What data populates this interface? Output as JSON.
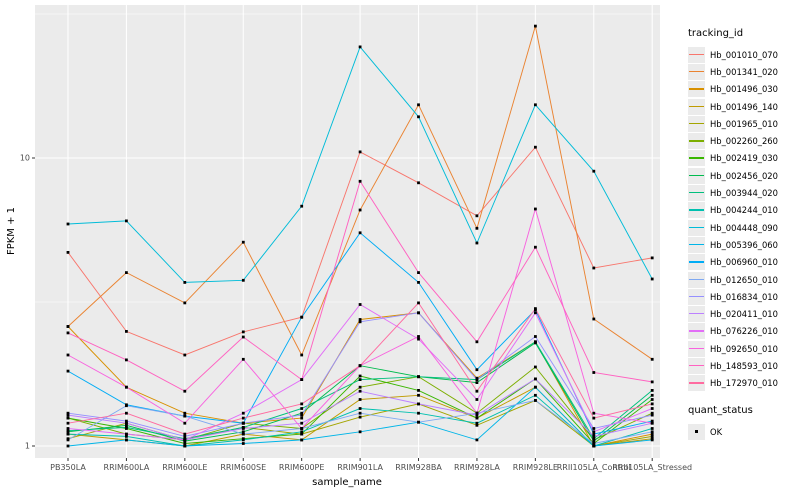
{
  "chart_data": {
    "type": "line",
    "title": "",
    "x_axis": {
      "label": "sample_name"
    },
    "y_axis": {
      "label": "FPKM + 1",
      "scale": "log10",
      "ticks": [
        "10",
        "1"
      ],
      "tick_values": [
        10,
        1
      ],
      "minor_tick_values": [
        3.162,
        31.62
      ],
      "ylim_approx": [
        0.92,
        33
      ]
    },
    "grid": "on",
    "legend_position": "right",
    "panel_bg": "#ebebeb",
    "grid_color": "#ffffff",
    "marker": {
      "shape": "square",
      "color": "#000000"
    },
    "categories": [
      "PB350LA",
      "RRIM600LA",
      "RRIM600LE",
      "RRIM600SE",
      "RRIM600PE",
      "RRIM901LA",
      "RRIM928BA",
      "RRIM928LA",
      "RRIM928LE",
      "RRII105LA_Control",
      "RRII105LA_Stressed"
    ],
    "legend_title": "tracking_id",
    "quant_legend": {
      "title": "quant_status",
      "items": [
        {
          "label": "OK"
        }
      ]
    },
    "series": [
      {
        "name": "Hb_001010_070",
        "color": "#F8766D",
        "values": [
          4.7,
          2.5,
          2.07,
          2.49,
          2.8,
          10.5,
          8.2,
          6.3,
          10.9,
          4.15,
          4.5
        ]
      },
      {
        "name": "Hb_001341_020",
        "color": "#EA8331",
        "values": [
          2.6,
          4.0,
          3.14,
          5.1,
          2.07,
          6.6,
          15.3,
          5.7,
          28.7,
          2.76,
          2.0
        ]
      },
      {
        "name": "Hb_001496_030",
        "color": "#D89000",
        "values": [
          2.6,
          1.6,
          1.3,
          1.2,
          1.25,
          2.75,
          2.9,
          1.72,
          2.3,
          1.0,
          1.1
        ]
      },
      {
        "name": "Hb_001496_140",
        "color": "#C09B00",
        "values": [
          1.1,
          1.05,
          1.0,
          1.1,
          1.05,
          1.45,
          1.5,
          1.25,
          1.6,
          1.0,
          1.06
        ]
      },
      {
        "name": "Hb_001965_010",
        "color": "#A3A500",
        "values": [
          1.06,
          1.2,
          1.05,
          1.16,
          1.1,
          1.26,
          1.4,
          1.18,
          1.44,
          1.0,
          1.08
        ]
      },
      {
        "name": "Hb_002260_260",
        "color": "#7CAE00",
        "values": [
          1.25,
          1.1,
          1.05,
          1.2,
          1.15,
          1.6,
          1.74,
          1.3,
          1.88,
          1.05,
          1.3
        ]
      },
      {
        "name": "Hb_002419_030",
        "color": "#39B600",
        "values": [
          1.25,
          1.15,
          1.02,
          1.06,
          1.1,
          1.75,
          1.56,
          1.25,
          1.71,
          1.02,
          1.45
        ]
      },
      {
        "name": "Hb_002456_020",
        "color": "#00BB4E",
        "values": [
          1.12,
          1.18,
          1.04,
          1.12,
          1.3,
          1.9,
          1.74,
          1.66,
          2.28,
          1.04,
          1.5
        ]
      },
      {
        "name": "Hb_003944_020",
        "color": "#00BF7D",
        "values": [
          1.13,
          1.16,
          1.06,
          1.16,
          1.35,
          1.7,
          1.74,
          1.7,
          2.3,
          1.06,
          1.56
        ]
      },
      {
        "name": "Hb_004244_010",
        "color": "#00C0AF",
        "values": [
          1.1,
          1.08,
          1.0,
          1.05,
          1.12,
          1.35,
          1.3,
          1.2,
          1.5,
          1.0,
          1.15
        ]
      },
      {
        "name": "Hb_004448_090",
        "color": "#00BCD8",
        "values": [
          5.9,
          6.05,
          3.7,
          3.76,
          6.8,
          24.3,
          13.9,
          5.07,
          15.3,
          9.0,
          3.8
        ]
      },
      {
        "name": "Hb_005396_060",
        "color": "#00B5E8",
        "values": [
          1.0,
          1.05,
          1.0,
          1.02,
          1.05,
          1.12,
          1.21,
          1.05,
          1.6,
          1.0,
          1.05
        ]
      },
      {
        "name": "Hb_006960_010",
        "color": "#00ACF5",
        "values": [
          1.82,
          1.39,
          1.27,
          1.2,
          2.8,
          5.5,
          3.7,
          1.84,
          2.97,
          1.1,
          1.22
        ]
      },
      {
        "name": "Hb_012650_010",
        "color": "#7FA9F2",
        "values": [
          1.05,
          1.38,
          1.27,
          1.1,
          1.15,
          1.3,
          1.21,
          1.3,
          1.44,
          1.02,
          1.12
        ]
      },
      {
        "name": "Hb_016834_010",
        "color": "#9590FF",
        "values": [
          1.3,
          1.22,
          1.08,
          1.2,
          1.28,
          2.7,
          2.9,
          1.7,
          2.4,
          1.15,
          1.28
        ]
      },
      {
        "name": "Hb_020411_010",
        "color": "#BC81FF",
        "values": [
          1.28,
          1.2,
          1.05,
          1.15,
          1.2,
          1.55,
          1.4,
          1.28,
          1.71,
          1.08,
          1.2
        ]
      },
      {
        "name": "Hb_076226_010",
        "color": "#E26EF7",
        "values": [
          1.15,
          1.1,
          1.05,
          1.3,
          1.7,
          3.1,
          2.35,
          1.45,
          2.9,
          1.12,
          1.35
        ]
      },
      {
        "name": "Hb_092650_010",
        "color": "#F863DF",
        "values": [
          2.07,
          1.6,
          1.2,
          2.0,
          1.15,
          1.9,
          2.4,
          1.3,
          6.65,
          1.3,
          1.2
        ]
      },
      {
        "name": "Hb_148593_010",
        "color": "#FF62C1",
        "values": [
          2.47,
          1.99,
          1.55,
          2.39,
          1.7,
          8.3,
          4.0,
          2.3,
          4.9,
          1.8,
          1.67
        ]
      },
      {
        "name": "Hb_172970_010",
        "color": "#FF6BA0",
        "values": [
          1.2,
          1.3,
          1.1,
          1.25,
          1.4,
          1.9,
          3.14,
          1.55,
          3.0,
          1.25,
          1.4
        ]
      }
    ]
  }
}
